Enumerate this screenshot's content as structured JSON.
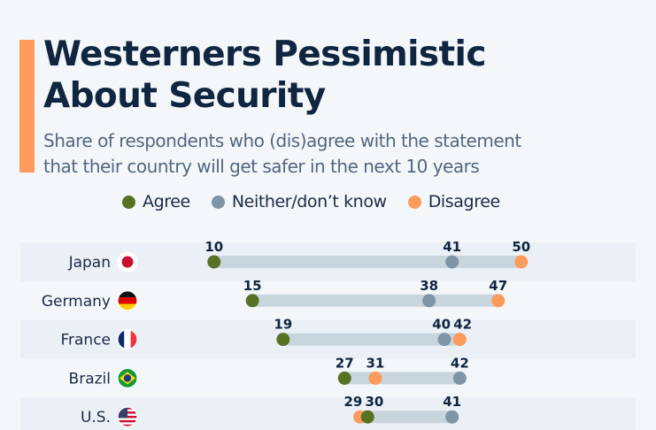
{
  "header": {
    "title_line1": "Westerners Pessimistic",
    "title_line2": "About Security",
    "subtitle_line1": "Share of respondents who (dis)agree with the statement",
    "subtitle_line2": "that their country will get safer in the next 10 years"
  },
  "legend": [
    {
      "label": "Agree",
      "color": "#587224"
    },
    {
      "label": "Neither/don’t know",
      "color": "#7d95a6"
    },
    {
      "label": "Disagree",
      "color": "#fd9a5c"
    }
  ],
  "colors": {
    "agree": "#587224",
    "neither": "#7d95a6",
    "disagree": "#fd9a5c",
    "range_bar": "#c9d5dd",
    "band": "#ebf0f7",
    "accent": "#fd9a5c"
  },
  "chart_data": {
    "type": "dot-range",
    "title": "Westerners Pessimistic About Security",
    "subtitle": "Share of respondents who (dis)agree with the statement that their country will get safer in the next 10 years",
    "unit": "%",
    "categories": [
      "Japan",
      "Germany",
      "France",
      "Brazil",
      "U.S."
    ],
    "flags": [
      "japan-flag",
      "germany-flag",
      "france-flag",
      "brazil-flag",
      "usa-flag"
    ],
    "series": [
      {
        "name": "Agree",
        "values": [
          10,
          15,
          19,
          27,
          30
        ]
      },
      {
        "name": "Neither/don’t know",
        "values": [
          41,
          38,
          40,
          42,
          41
        ]
      },
      {
        "name": "Disagree",
        "values": [
          50,
          47,
          42,
          31,
          29
        ]
      }
    ],
    "legend_position": "top-center",
    "grid": false
  }
}
